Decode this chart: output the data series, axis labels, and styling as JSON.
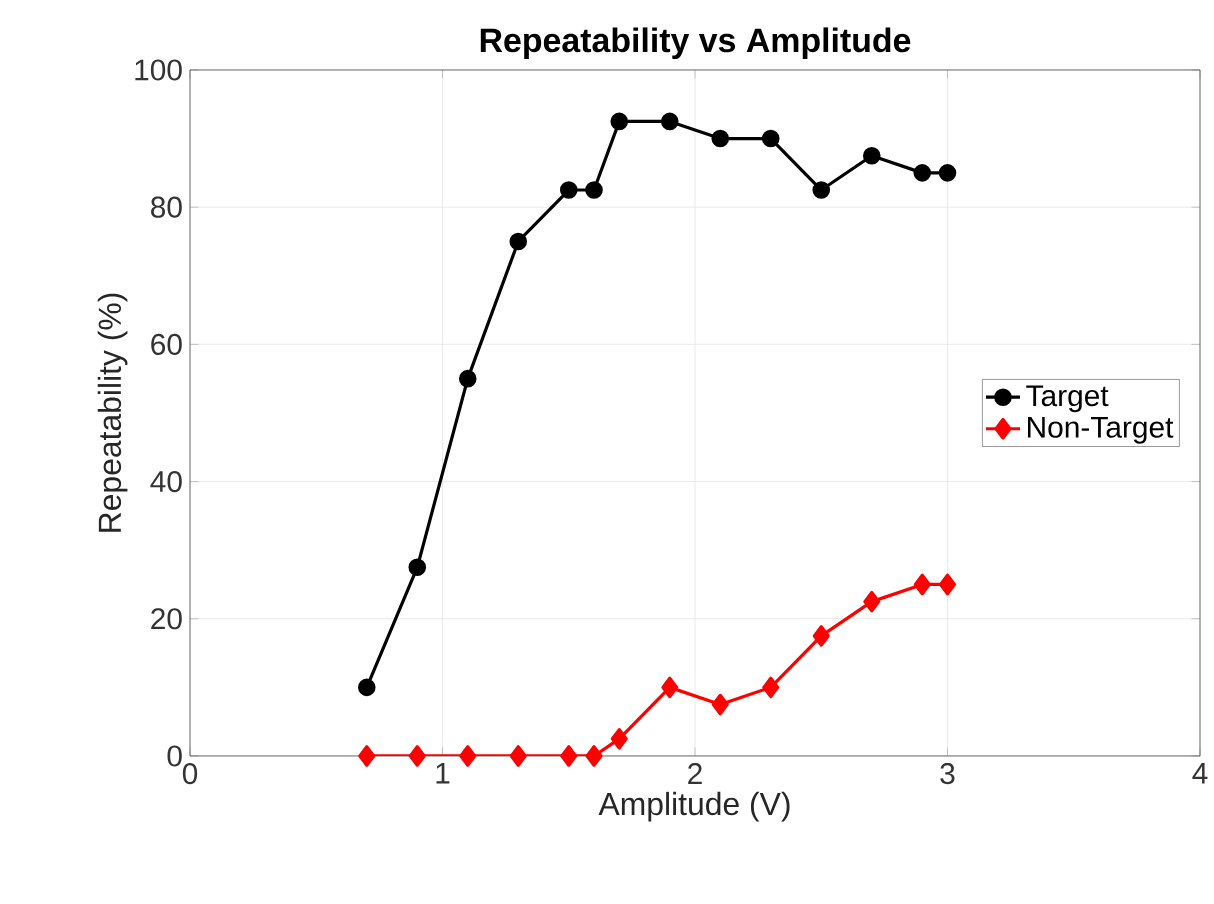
{
  "chart_data": {
    "type": "line",
    "title": "Repeatability vs Amplitude",
    "xlabel": "Amplitude (V)",
    "ylabel": "Repeatability (%)",
    "xlim": [
      0,
      4
    ],
    "xticks": [
      0,
      1,
      2,
      3,
      4
    ],
    "ylim": [
      0,
      100
    ],
    "yticks": [
      0,
      20,
      40,
      60,
      80,
      100
    ],
    "grid": true,
    "legend": "right",
    "series": [
      {
        "name": "Target",
        "color": "#000000",
        "marker": "circle",
        "x": [
          0.7,
          0.9,
          1.1,
          1.3,
          1.5,
          1.6,
          1.7,
          1.9,
          2.1,
          2.3,
          2.5,
          2.7,
          2.9,
          3.0
        ],
        "values": [
          10,
          27.5,
          55,
          75,
          82.5,
          82.5,
          92.5,
          92.5,
          90,
          90,
          82.5,
          87.5,
          85,
          85
        ]
      },
      {
        "name": "Non-Target",
        "color": "#ff0000",
        "marker": "diamond",
        "x": [
          0.7,
          0.9,
          1.1,
          1.3,
          1.5,
          1.6,
          1.7,
          1.9,
          2.1,
          2.3,
          2.5,
          2.7,
          2.9,
          3.0
        ],
        "values": [
          0,
          0,
          0,
          0,
          0,
          0,
          2.5,
          10,
          7.5,
          10,
          17.5,
          22.5,
          25,
          25
        ]
      }
    ]
  }
}
